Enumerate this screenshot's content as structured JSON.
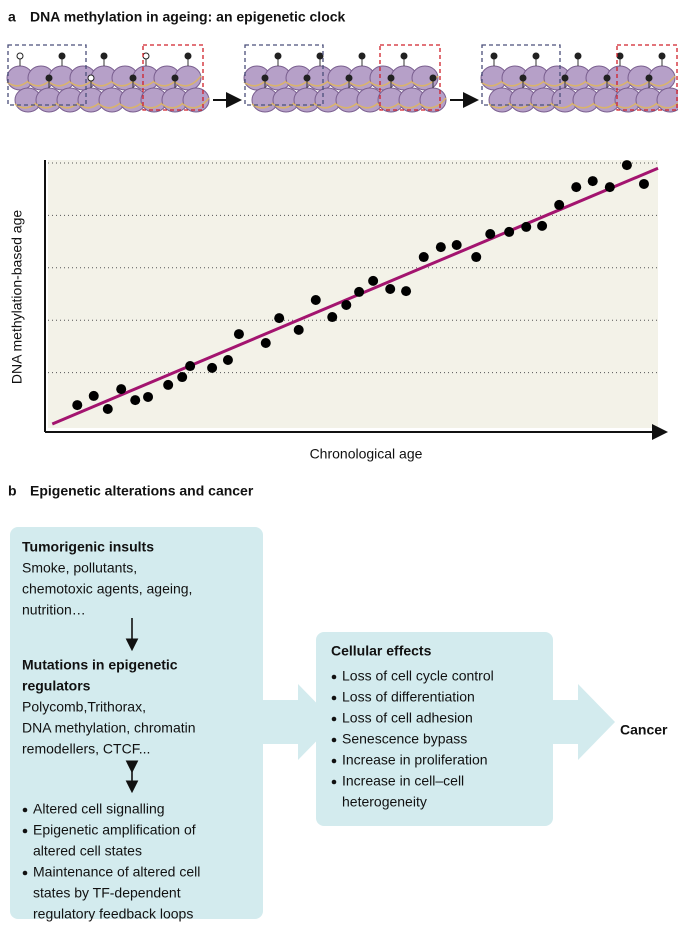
{
  "panel_a": {
    "label": "a",
    "title": "DNA methylation in ageing: an epigenetic clock"
  },
  "chart_data": {
    "type": "scatter",
    "x_label": "Chronological age",
    "y_label": "DNA methylation-based age",
    "x": [
      4.8,
      7.5,
      9.8,
      12.0,
      14.3,
      16.4,
      19.7,
      22.0,
      23.3,
      26.9,
      29.5,
      31.3,
      35.7,
      37.9,
      41.1,
      43.9,
      46.6,
      48.9,
      51.0,
      53.3,
      56.1,
      58.7,
      61.6,
      64.4,
      67.0,
      70.2,
      72.5,
      75.6,
      78.4,
      81.0,
      83.8,
      86.6,
      89.3,
      92.1,
      94.9,
      97.7
    ],
    "values": [
      7.6,
      11.1,
      6.1,
      13.7,
      9.5,
      10.7,
      15.3,
      18.3,
      22.5,
      21.8,
      24.8,
      34.7,
      31.3,
      40.8,
      36.3,
      47.7,
      41.2,
      45.8,
      50.8,
      55.0,
      51.9,
      51.1,
      64.1,
      67.9,
      68.7,
      64.1,
      72.9,
      73.7,
      75.6,
      76.0,
      84.0,
      90.8,
      93.1,
      90.8,
      99.2,
      92.0
    ],
    "color": "#000000",
    "trend_line": {
      "x": [
        0.7,
        100
      ],
      "y": [
        0.4,
        98
      ],
      "color": "#a3146f"
    },
    "xlim": [
      0,
      100
    ],
    "ylim": [
      0,
      100
    ],
    "yticks": [
      20,
      40,
      60,
      80,
      100
    ],
    "grid": true
  },
  "panel_b": {
    "label": "b",
    "title": "Epigenetic alterations and cancer",
    "left_box": {
      "heading1": [
        "Tumorigenic insults"
      ],
      "text1": [
        "Smoke, pollutants,",
        "chemotoxic agents, ageing,",
        "nutrition…"
      ],
      "heading2": [
        "Mutations in epigenetic",
        "regulators"
      ],
      "text2": [
        "Polycomb,Trithorax,",
        "DNA methylation, chromatin",
        "remodellers, CTCF..."
      ],
      "bullets": [
        [
          "Altered cell signalling"
        ],
        [
          "Epigenetic amplification of",
          "altered cell states"
        ],
        [
          "Maintenance of altered cell",
          "states by TF-dependent",
          "regulatory feedback loops"
        ]
      ]
    },
    "middle_box": {
      "heading": "Cellular effects",
      "bullets": [
        [
          "Loss of cell cycle control"
        ],
        [
          "Loss of differentiation"
        ],
        [
          "Loss of cell adhesion"
        ],
        [
          "Senescence bypass"
        ],
        [
          "Increase in proliferation"
        ],
        [
          "Increase in cell–cell",
          "heterogeneity"
        ]
      ]
    },
    "output": "Cancer"
  }
}
